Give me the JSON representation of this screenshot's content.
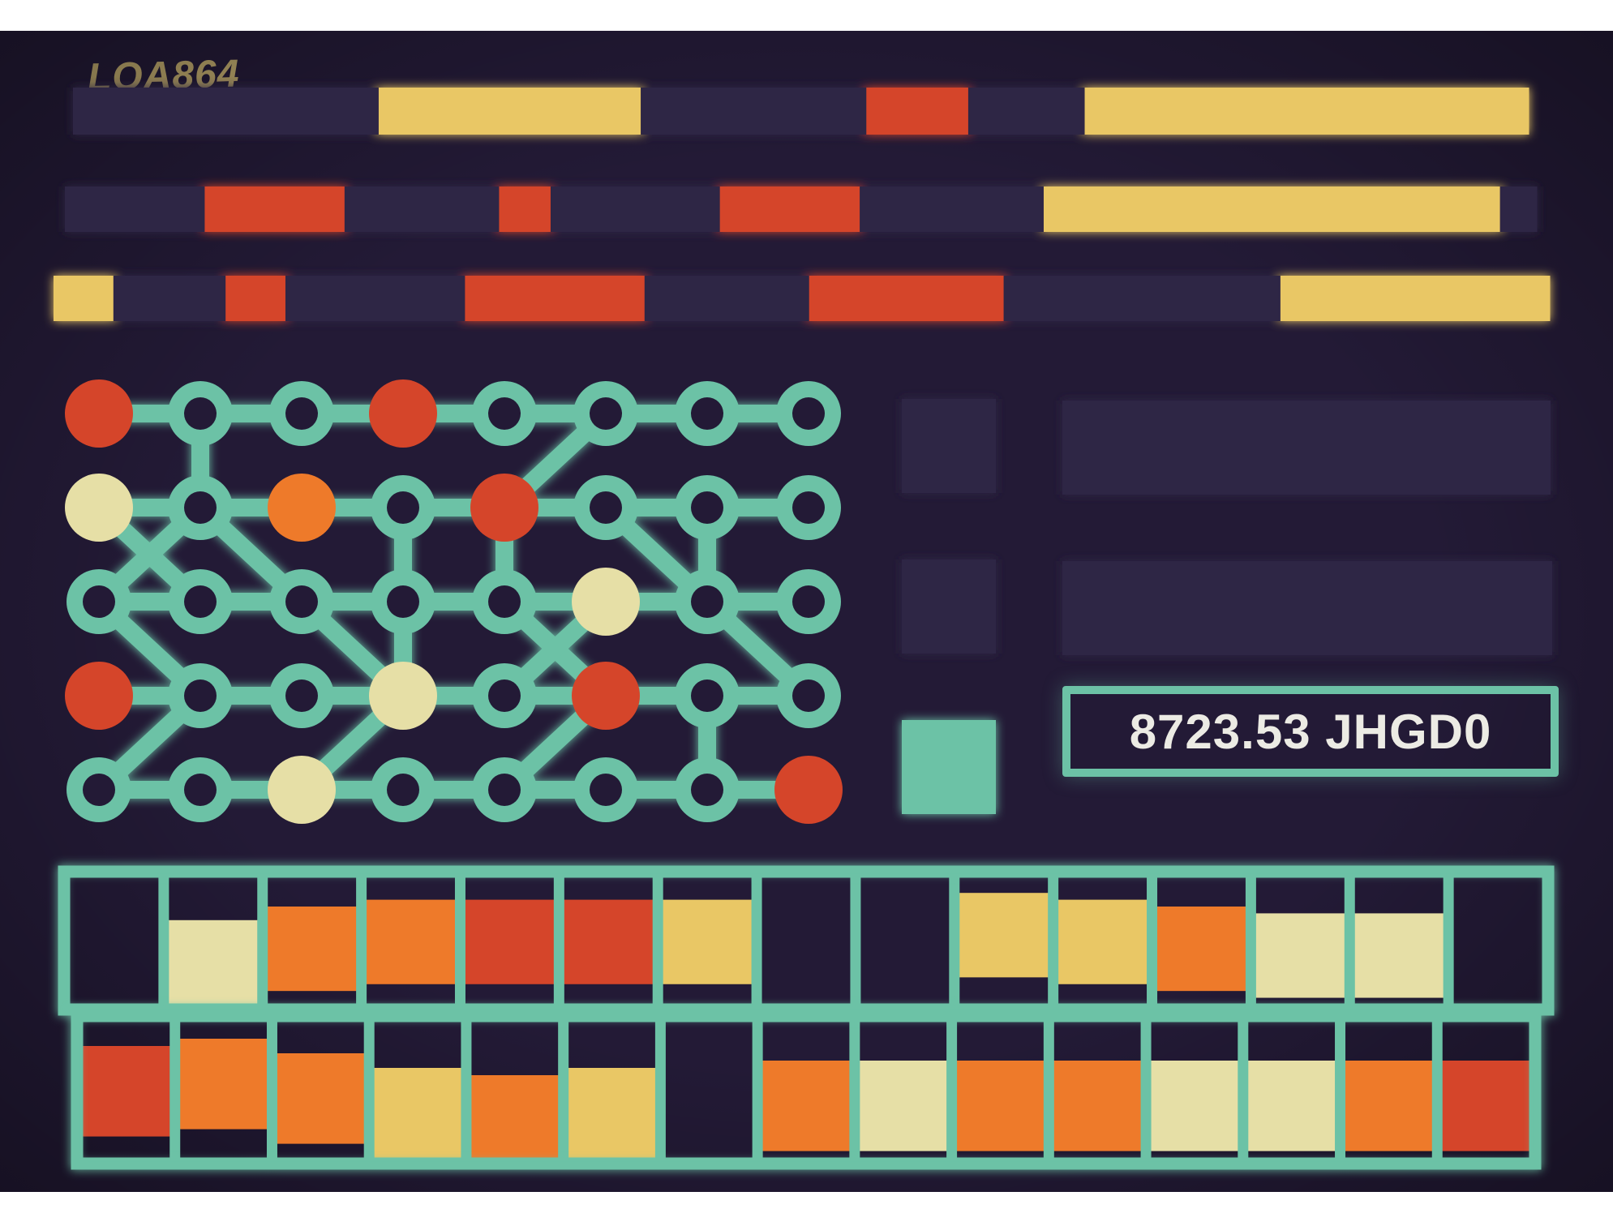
{
  "screen": {
    "label": "LOA864",
    "readout": "8723.53 JHGD0"
  },
  "colors": {
    "background": "#231a36",
    "track": "#2f2545",
    "yellow": "#e9c765",
    "red": "#d5452a",
    "orange": "#ee7a2a",
    "cream": "#e6dfa6",
    "teal": "#6cc2a6",
    "node_hole": "#231a36"
  },
  "bars": [
    {
      "segments": [
        [
          "track",
          0.21
        ],
        [
          "yellow",
          0.18
        ],
        [
          "track",
          0.155
        ],
        [
          "red",
          0.07
        ],
        [
          "track",
          0.08
        ],
        [
          "yellow",
          0.305
        ]
      ]
    },
    {
      "segments": [
        [
          "track",
          0.095
        ],
        [
          "red",
          0.095
        ],
        [
          "track",
          0.105
        ],
        [
          "red",
          0.035
        ],
        [
          "track",
          0.115
        ],
        [
          "red",
          0.095
        ],
        [
          "track",
          0.125
        ],
        [
          "yellow",
          0.31
        ],
        [
          "track",
          0.025
        ]
      ]
    },
    {
      "segments": [
        [
          "yellow",
          0.04
        ],
        [
          "track",
          0.075
        ],
        [
          "red",
          0.04
        ],
        [
          "track",
          0.12
        ],
        [
          "red",
          0.12
        ],
        [
          "track",
          0.11
        ],
        [
          "red",
          0.13
        ],
        [
          "track",
          0.185
        ],
        [
          "yellow",
          0.18
        ]
      ]
    }
  ],
  "node_grid": {
    "rows": [
      [
        "red",
        "hole",
        "hole",
        "red",
        "hole",
        "hole",
        "hole",
        "hole"
      ],
      [
        "cream",
        "hole",
        "orange",
        "hole",
        "red",
        "hole",
        "hole",
        "hole"
      ],
      [
        "hole",
        "hole",
        "hole",
        "hole",
        "hole",
        "cream",
        "hole",
        "hole"
      ],
      [
        "red",
        "hole",
        "hole",
        "cream",
        "hole",
        "red",
        "hole",
        "hole"
      ],
      [
        "hole",
        "hole",
        "cream",
        "hole",
        "hole",
        "hole",
        "hole",
        "red"
      ]
    ],
    "links": [
      [
        0,
        0,
        0,
        1
      ],
      [
        0,
        1,
        0,
        2
      ],
      [
        0,
        2,
        0,
        3
      ],
      [
        0,
        3,
        0,
        4
      ],
      [
        0,
        4,
        0,
        5
      ],
      [
        0,
        5,
        0,
        6
      ],
      [
        0,
        6,
        0,
        7
      ],
      [
        1,
        0,
        1,
        1
      ],
      [
        1,
        1,
        1,
        2
      ],
      [
        1,
        2,
        1,
        3
      ],
      [
        1,
        3,
        1,
        4
      ],
      [
        1,
        4,
        1,
        5
      ],
      [
        1,
        5,
        1,
        6
      ],
      [
        1,
        6,
        1,
        7
      ],
      [
        2,
        0,
        2,
        1
      ],
      [
        2,
        1,
        2,
        2
      ],
      [
        2,
        2,
        2,
        3
      ],
      [
        2,
        3,
        2,
        4
      ],
      [
        2,
        4,
        2,
        5
      ],
      [
        2,
        5,
        2,
        6
      ],
      [
        2,
        6,
        2,
        7
      ],
      [
        3,
        0,
        3,
        1
      ],
      [
        3,
        1,
        3,
        2
      ],
      [
        3,
        2,
        3,
        3
      ],
      [
        3,
        3,
        3,
        4
      ],
      [
        3,
        4,
        3,
        5
      ],
      [
        3,
        5,
        3,
        6
      ],
      [
        3,
        6,
        3,
        7
      ],
      [
        4,
        0,
        4,
        1
      ],
      [
        4,
        1,
        4,
        2
      ],
      [
        4,
        2,
        4,
        3
      ],
      [
        4,
        3,
        4,
        4
      ],
      [
        4,
        4,
        4,
        5
      ],
      [
        4,
        5,
        4,
        6
      ],
      [
        4,
        6,
        4,
        7
      ],
      [
        0,
        1,
        1,
        1
      ],
      [
        0,
        5,
        1,
        4
      ],
      [
        1,
        0,
        2,
        1
      ],
      [
        1,
        1,
        2,
        2
      ],
      [
        1,
        1,
        2,
        0
      ],
      [
        1,
        3,
        2,
        3
      ],
      [
        1,
        5,
        2,
        6
      ],
      [
        1,
        6,
        2,
        6
      ],
      [
        2,
        0,
        3,
        1
      ],
      [
        2,
        2,
        3,
        3
      ],
      [
        2,
        3,
        3,
        3
      ],
      [
        2,
        4,
        3,
        5
      ],
      [
        2,
        5,
        3,
        4
      ],
      [
        2,
        6,
        3,
        7
      ],
      [
        3,
        1,
        4,
        0
      ],
      [
        3,
        5,
        4,
        4
      ],
      [
        3,
        6,
        4,
        6
      ],
      [
        3,
        3,
        4,
        2
      ],
      [
        1,
        4,
        2,
        4
      ]
    ]
  },
  "side_blocks": {
    "squares": [
      "track",
      "track",
      "teal"
    ],
    "wide": [
      "track",
      "track"
    ]
  },
  "strips": [
    {
      "cells": [
        [
          "none",
          0
        ],
        [
          "cream",
          0.35
        ],
        [
          "orange",
          0.25
        ],
        [
          "orange",
          0.2
        ],
        [
          "red",
          0.2
        ],
        [
          "red",
          0.2
        ],
        [
          "yellow",
          0.2
        ],
        [
          "none",
          0
        ],
        [
          "none",
          0
        ],
        [
          "yellow",
          0.15
        ],
        [
          "yellow",
          0.2
        ],
        [
          "orange",
          0.25
        ],
        [
          "cream",
          0.3
        ],
        [
          "cream",
          0.3
        ],
        [
          "none",
          0
        ]
      ]
    },
    {
      "cells": [
        [
          "red",
          0.2
        ],
        [
          "orange",
          0.15
        ],
        [
          "orange",
          0.25
        ],
        [
          "yellow",
          0.35
        ],
        [
          "orange",
          0.4
        ],
        [
          "yellow",
          0.35
        ],
        [
          "none",
          0
        ],
        [
          "orange",
          0.3
        ],
        [
          "cream",
          0.3
        ],
        [
          "orange",
          0.3
        ],
        [
          "orange",
          0.3
        ],
        [
          "cream",
          0.3
        ],
        [
          "cream",
          0.3
        ],
        [
          "orange",
          0.3
        ],
        [
          "red",
          0.3
        ]
      ]
    }
  ]
}
